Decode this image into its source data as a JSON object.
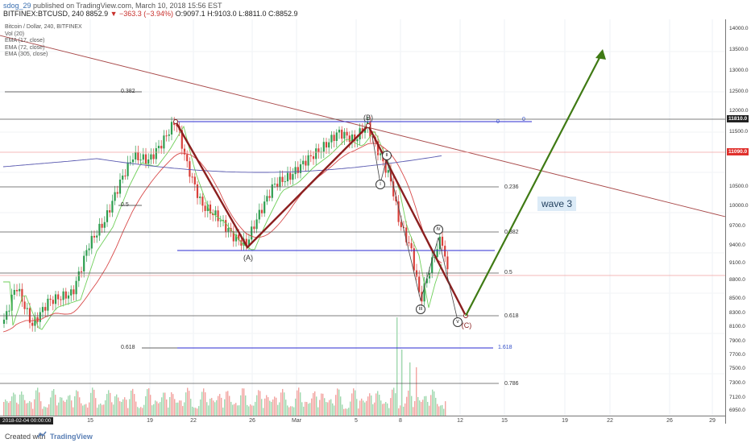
{
  "header": {
    "user": "sdog_29",
    "published": " published on TradingView.com, March 10, 2018 15:56 EST",
    "symbol": "BITFINEX:BTCUSD, 240",
    "last": "8852.9",
    "change": "▼ −363.3 (−3.94%)",
    "ohlc": "O:9097.1 H:9103.0 L:8811.0 C:8852.9"
  },
  "legend": [
    "Bitcoin / Dollar, 240, BITFINEX",
    "Vol (20)",
    "EMA (17, close)",
    "EMA (72, close)",
    "EMA (305, close)"
  ],
  "price_axis": {
    "labels": [
      "14000.0",
      "13500.0",
      "13000.0",
      "12500.0",
      "12000.0",
      "11500.0",
      "11000.0",
      "10500.0",
      "10000.0",
      "9700.0",
      "9400.0",
      "9100.0",
      "8800.0",
      "8500.0",
      "8300.0",
      "8100.0",
      "7900.0",
      "7700.0",
      "7500.0",
      "7300.0",
      "7120.0",
      "6950.0"
    ],
    "badge_top": "11810.0",
    "badge_red": "11090.0"
  },
  "time_axis": {
    "badge": "2018-02-04 00:00:00",
    "labels": [
      "15",
      "19",
      "22",
      "26",
      "Mar",
      "5",
      "8",
      "12",
      "15",
      "19",
      "22",
      "26",
      "29"
    ]
  },
  "fib_labels": {
    "f0382_left": "0.382",
    "f05_left": "0.5",
    "f0618_left": "0.618",
    "f0_top": "0",
    "f0_top2": "0",
    "f0236": "0.236",
    "f0382": "0.382",
    "f05": "0.5",
    "f0618": "0.618",
    "f1618": "1.618",
    "f0786": "0.786"
  },
  "waves": {
    "A": "(A)",
    "B": "(B)",
    "C": "(C)",
    "i": "i",
    "ii": "ii",
    "iii": "iii",
    "iv": "iv",
    "v": "v"
  },
  "annotation": "wave 3",
  "footer": {
    "created": "Created with",
    "brand": "TradingView"
  },
  "colors": {
    "candle_up": "#2e9d4f",
    "candle_down": "#d9403a",
    "wave_line": "#8b1f1f",
    "projection": "#3f7a14",
    "ema17": "#6fcf5a",
    "ema72": "#d84a4a",
    "ema305": "#5a5ab0",
    "blue_level": "#2b2bd0",
    "trendline": "#a84a4a"
  }
}
